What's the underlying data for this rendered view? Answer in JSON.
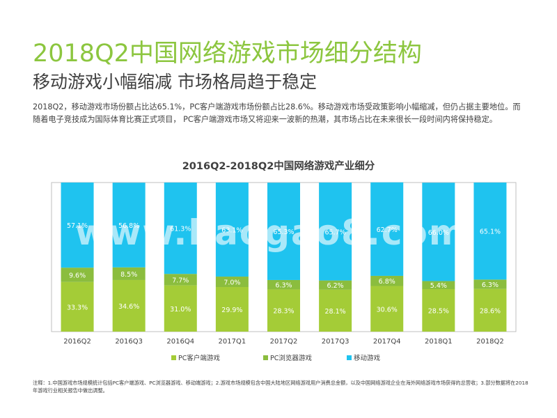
{
  "page": {
    "title": "2018Q2中国网络游戏市场细分结构",
    "subtitle": "移动游戏小幅缩减 市场格局趋于稳定",
    "description": "2018Q2，移动游戏市场份额占比达65.1%，PC客户端游戏市场份额占比28.6%。移动游戏市场受政策影响小幅缩减，但仍占据主要地位。而随着电子竞技成为国际体育比赛正式项目，  PC客户端游戏市场又将迎来一波新的热潮，其市场占比在未来很长一段时间内将保持稳定。",
    "footnote": "注释：1.中国游戏市场规模统计包括PC客户端游戏、PC浏览器游戏、移动端游戏；2.游戏市场规模包含中国大陆地区网络游戏用户消费总金额，以及中国网络游戏企业在海外网络游戏市场获得的总营收；3.部分数据将在2018年游戏行业相关报告中做出调整。",
    "watermark": "www.baogao8.com"
  },
  "chart_data": {
    "type": "bar",
    "stacked": true,
    "percent": true,
    "title": "2016Q2-2018Q2中国网络游戏产业细分",
    "categories": [
      "2016Q2",
      "2016Q3",
      "2016Q4",
      "2017Q1",
      "2017Q2",
      "2017Q3",
      "2017Q4",
      "2018Q1",
      "2018Q2"
    ],
    "ylim": [
      0,
      100
    ],
    "legend_position": "bottom",
    "series": [
      {
        "name": "PC客户端游戏",
        "color": "#a4cc37",
        "values": [
          33.3,
          34.6,
          31.0,
          29.9,
          28.3,
          28.1,
          30.6,
          28.5,
          28.6
        ]
      },
      {
        "name": "PC浏览器游戏",
        "color": "#8bbd3e",
        "values": [
          9.6,
          8.5,
          7.7,
          7.0,
          6.3,
          6.2,
          6.8,
          5.4,
          6.3
        ]
      },
      {
        "name": "移动游戏",
        "color": "#1fc3ef",
        "values": [
          57.1,
          56.8,
          61.3,
          63.1,
          65.3,
          65.7,
          62.7,
          66.0,
          65.1
        ]
      }
    ],
    "value_labels": [
      [
        "33.3%",
        "34.6%",
        "31.0%",
        "29.9%",
        "28.3%",
        "28.1%",
        "30.6%",
        "28.5%",
        "28.6%"
      ],
      [
        "9.6%",
        "8.5%",
        "7.7%",
        "7.0%",
        "6.3%",
        "6.2%",
        "6.8%",
        "5.4%",
        "6.3%"
      ],
      [
        "57.1%",
        "56.8%",
        "61.3%",
        "63.1%",
        "65.3%",
        "65.7%",
        "62.7%",
        "66.0%",
        "65.1%"
      ]
    ]
  }
}
